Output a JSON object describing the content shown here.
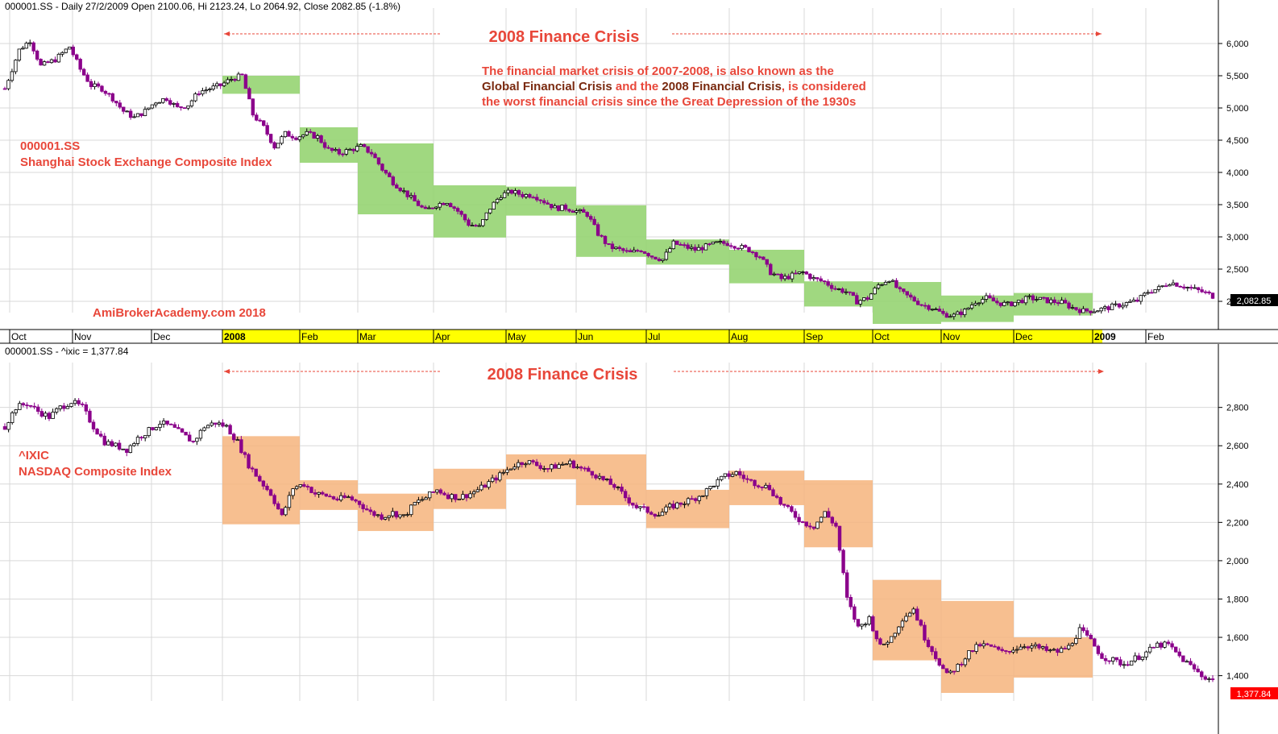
{
  "top_panel": {
    "header": "000001.SS - Daily 27/2/2009 Open 2100.06, Hi 2123.24, Lo 2064.92, Close 2082.85 (-1.8%)",
    "title": "2008 Finance Crisis",
    "description": {
      "line1": "The financial market crisis of 2007-2008, is also known as the",
      "line2_part1": "Global Financial Crisis",
      "line2_part2": " and the ",
      "line2_part3": "2008 Financial Crisis",
      "line2_part4": ", is considered",
      "line3": "the worst financial crisis since the Great Depression of the 1930s"
    },
    "symbol": "000001.SS",
    "name": "Shanghai Stock Exchange Composite Index",
    "watermark": "AmiBrokerAcademy.com  2018",
    "last_value_label": "2,082.85"
  },
  "bottom_panel": {
    "header": "000001.SS - ^ixic = 1,377.84",
    "title": "2008 Finance Crisis",
    "symbol": "^IXIC",
    "name": "NASDAQ Composite Index",
    "last_value_label": "1,377.84"
  },
  "colors": {
    "accent_red": "#e8473a",
    "brown_emphasis": "#7a2a10",
    "green_box": "#8fd16a",
    "orange_box": "#f6b47d",
    "candle_down": "#8b008b",
    "date_axis_bg": "#ffff00",
    "last_top_bg": "#000000",
    "last_bottom_bg": "#ff0000"
  },
  "chart_data": [
    {
      "type": "candlestick",
      "title": "2008 Finance Crisis",
      "ylim": [
        1950,
        6300
      ],
      "yticks": [
        2000,
        2500,
        3000,
        3500,
        4000,
        4500,
        5000,
        5500,
        6000
      ],
      "ytick_labels": [
        "2,000",
        "2,500",
        "3,000",
        "3,500",
        "4,000",
        "4,500",
        "5,000",
        "5,500",
        "6,000"
      ],
      "x_labels": [
        "Oct",
        "Nov",
        "Dec",
        "2008",
        "Feb",
        "Mar",
        "Apr",
        "May",
        "Jun",
        "Jul",
        "Aug",
        "Sep",
        "Oct",
        "Nov",
        "Dec",
        "2009",
        "Feb"
      ],
      "x_label_bold": [
        "2008",
        "2009"
      ],
      "month_ranges": [
        {
          "start": 5220,
          "end": 5500
        },
        {
          "start": 4150,
          "end": 4700
        },
        {
          "start": 3350,
          "end": 4450
        },
        {
          "start": 2990,
          "end": 3800
        },
        {
          "start": 3330,
          "end": 3780
        },
        {
          "start": 2690,
          "end": 3490
        },
        {
          "start": 2570,
          "end": 2960
        },
        {
          "start": 2280,
          "end": 2800
        },
        {
          "start": 1920,
          "end": 2310
        },
        {
          "start": 1650,
          "end": 2300
        },
        {
          "start": 1680,
          "end": 2090
        },
        {
          "start": 1780,
          "end": 2130
        }
      ],
      "close_path": [
        [
          0,
          5300
        ],
        [
          4,
          5900
        ],
        [
          7,
          6050
        ],
        [
          10,
          5650
        ],
        [
          14,
          5750
        ],
        [
          18,
          5950
        ],
        [
          21,
          5600
        ],
        [
          24,
          5350
        ],
        [
          27,
          5300
        ],
        [
          30,
          5150
        ],
        [
          33,
          4950
        ],
        [
          36,
          4850
        ],
        [
          39,
          4950
        ],
        [
          42,
          5100
        ],
        [
          45,
          5150
        ],
        [
          48,
          5000
        ],
        [
          51,
          5050
        ],
        [
          54,
          5250
        ],
        [
          57,
          5300
        ],
        [
          60,
          5350
        ],
        [
          63,
          5450
        ],
        [
          66,
          5500
        ],
        [
          69,
          4900
        ],
        [
          72,
          4700
        ],
        [
          75,
          4400
        ],
        [
          78,
          4600
        ],
        [
          81,
          4550
        ],
        [
          84,
          4600
        ],
        [
          87,
          4550
        ],
        [
          90,
          4350
        ],
        [
          93,
          4300
        ],
        [
          96,
          4350
        ],
        [
          99,
          4400
        ],
        [
          102,
          4300
        ],
        [
          105,
          4050
        ],
        [
          108,
          3850
        ],
        [
          111,
          3700
        ],
        [
          114,
          3550
        ],
        [
          117,
          3400
        ],
        [
          120,
          3500
        ],
        [
          123,
          3550
        ],
        [
          126,
          3400
        ],
        [
          129,
          3200
        ],
        [
          132,
          3150
        ],
        [
          135,
          3450
        ],
        [
          138,
          3650
        ],
        [
          141,
          3700
        ],
        [
          144,
          3650
        ],
        [
          147,
          3650
        ],
        [
          150,
          3550
        ],
        [
          153,
          3450
        ],
        [
          156,
          3450
        ],
        [
          159,
          3400
        ],
        [
          162,
          3350
        ],
        [
          165,
          3050
        ],
        [
          168,
          2850
        ],
        [
          171,
          2800
        ],
        [
          174,
          2750
        ],
        [
          177,
          2800
        ],
        [
          180,
          2700
        ],
        [
          183,
          2650
        ],
        [
          186,
          2900
        ],
        [
          189,
          2850
        ],
        [
          192,
          2800
        ],
        [
          195,
          2850
        ],
        [
          198,
          2900
        ],
        [
          201,
          2900
        ],
        [
          204,
          2850
        ],
        [
          207,
          2800
        ],
        [
          210,
          2700
        ],
        [
          213,
          2450
        ],
        [
          216,
          2350
        ],
        [
          219,
          2400
        ],
        [
          222,
          2450
        ],
        [
          225,
          2350
        ],
        [
          228,
          2300
        ],
        [
          231,
          2200
        ],
        [
          234,
          2150
        ],
        [
          237,
          2000
        ],
        [
          240,
          2050
        ],
        [
          243,
          2250
        ],
        [
          246,
          2350
        ],
        [
          249,
          2150
        ],
        [
          252,
          2050
        ],
        [
          255,
          1950
        ],
        [
          258,
          1900
        ],
        [
          261,
          1800
        ],
        [
          264,
          1780
        ],
        [
          267,
          1850
        ],
        [
          270,
          2000
        ],
        [
          273,
          2050
        ],
        [
          276,
          1980
        ],
        [
          279,
          1950
        ],
        [
          282,
          2000
        ],
        [
          285,
          2050
        ],
        [
          288,
          2030
        ],
        [
          291,
          2000
        ],
        [
          294,
          1980
        ],
        [
          297,
          1900
        ],
        [
          300,
          1850
        ],
        [
          303,
          1860
        ],
        [
          306,
          1890
        ],
        [
          309,
          1930
        ],
        [
          312,
          1970
        ],
        [
          315,
          2010
        ],
        [
          318,
          2150
        ],
        [
          321,
          2200
        ],
        [
          324,
          2300
        ],
        [
          327,
          2250
        ],
        [
          330,
          2200
        ],
        [
          333,
          2150
        ],
        [
          336,
          2083
        ]
      ],
      "range_count": 336,
      "last_value": 2082.85
    },
    {
      "type": "candlestick",
      "title": "2008 Finance Crisis",
      "ylim": [
        1310,
        2950
      ],
      "yticks": [
        1400,
        1600,
        1800,
        2000,
        2200,
        2400,
        2600,
        2800
      ],
      "ytick_labels": [
        "1,400",
        "1,600",
        "1,800",
        "2,000",
        "2,200",
        "2,400",
        "2,600",
        "2,800"
      ],
      "month_ranges": [
        {
          "start": 2190,
          "end": 2650
        },
        {
          "start": 2265,
          "end": 2420
        },
        {
          "start": 2155,
          "end": 2350
        },
        {
          "start": 2270,
          "end": 2480
        },
        {
          "start": 2425,
          "end": 2555
        },
        {
          "start": 2290,
          "end": 2555
        },
        {
          "start": 2170,
          "end": 2370
        },
        {
          "start": 2290,
          "end": 2470
        },
        {
          "start": 2070,
          "end": 2420
        },
        {
          "start": 1480,
          "end": 1900
        },
        {
          "start": 1310,
          "end": 1790
        },
        {
          "start": 1390,
          "end": 1600
        }
      ],
      "close_path": [
        [
          0,
          2700
        ],
        [
          3,
          2800
        ],
        [
          6,
          2820
        ],
        [
          9,
          2780
        ],
        [
          12,
          2750
        ],
        [
          15,
          2800
        ],
        [
          18,
          2830
        ],
        [
          21,
          2800
        ],
        [
          24,
          2700
        ],
        [
          27,
          2620
        ],
        [
          30,
          2600
        ],
        [
          33,
          2580
        ],
        [
          36,
          2640
        ],
        [
          39,
          2680
        ],
        [
          42,
          2720
        ],
        [
          45,
          2700
        ],
        [
          48,
          2660
        ],
        [
          51,
          2620
        ],
        [
          54,
          2700
        ],
        [
          57,
          2720
        ],
        [
          60,
          2700
        ],
        [
          63,
          2620
        ],
        [
          66,
          2500
        ],
        [
          69,
          2420
        ],
        [
          72,
          2350
        ],
        [
          75,
          2230
        ],
        [
          78,
          2380
        ],
        [
          81,
          2400
        ],
        [
          84,
          2350
        ],
        [
          87,
          2340
        ],
        [
          90,
          2320
        ],
        [
          93,
          2330
        ],
        [
          96,
          2300
        ],
        [
          99,
          2250
        ],
        [
          102,
          2230
        ],
        [
          105,
          2250
        ],
        [
          108,
          2230
        ],
        [
          111,
          2300
        ],
        [
          114,
          2330
        ],
        [
          117,
          2370
        ],
        [
          120,
          2340
        ],
        [
          123,
          2330
        ],
        [
          126,
          2350
        ],
        [
          129,
          2380
        ],
        [
          132,
          2420
        ],
        [
          135,
          2460
        ],
        [
          138,
          2500
        ],
        [
          141,
          2520
        ],
        [
          144,
          2500
        ],
        [
          147,
          2480
        ],
        [
          150,
          2500
        ],
        [
          153,
          2510
        ],
        [
          156,
          2480
        ],
        [
          159,
          2460
        ],
        [
          162,
          2420
        ],
        [
          165,
          2390
        ],
        [
          168,
          2330
        ],
        [
          171,
          2280
        ],
        [
          174,
          2260
        ],
        [
          177,
          2240
        ],
        [
          180,
          2280
        ],
        [
          183,
          2300
        ],
        [
          186,
          2320
        ],
        [
          189,
          2350
        ],
        [
          192,
          2400
        ],
        [
          195,
          2440
        ],
        [
          198,
          2460
        ],
        [
          201,
          2420
        ],
        [
          204,
          2400
        ],
        [
          207,
          2380
        ],
        [
          210,
          2300
        ],
        [
          213,
          2250
        ],
        [
          216,
          2200
        ],
        [
          219,
          2180
        ],
        [
          222,
          2250
        ],
        [
          225,
          2180
        ],
        [
          228,
          1800
        ],
        [
          231,
          1650
        ],
        [
          234,
          1700
        ],
        [
          237,
          1550
        ],
        [
          240,
          1600
        ],
        [
          243,
          1700
        ],
        [
          246,
          1750
        ],
        [
          249,
          1600
        ],
        [
          252,
          1500
        ],
        [
          255,
          1400
        ],
        [
          258,
          1450
        ],
        [
          261,
          1520
        ],
        [
          264,
          1560
        ],
        [
          267,
          1550
        ],
        [
          270,
          1520
        ],
        [
          273,
          1540
        ],
        [
          276,
          1560
        ],
        [
          279,
          1550
        ],
        [
          282,
          1530
        ],
        [
          285,
          1525
        ],
        [
          288,
          1550
        ],
        [
          291,
          1640
        ],
        [
          294,
          1580
        ],
        [
          297,
          1500
        ],
        [
          300,
          1480
        ],
        [
          303,
          1460
        ],
        [
          306,
          1490
        ],
        [
          309,
          1520
        ],
        [
          312,
          1560
        ],
        [
          315,
          1560
        ],
        [
          318,
          1500
        ],
        [
          321,
          1450
        ],
        [
          324,
          1400
        ],
        [
          327,
          1378
        ]
      ],
      "range_count": 327,
      "last_value": 1377.84
    }
  ]
}
